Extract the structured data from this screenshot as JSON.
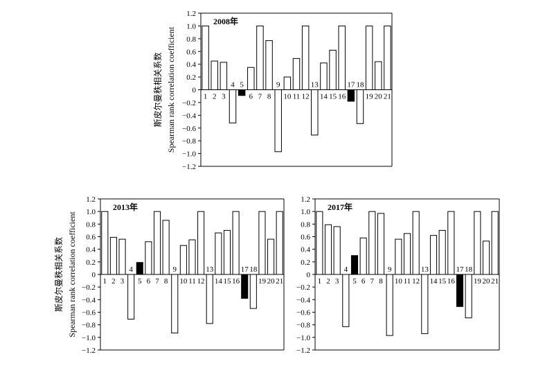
{
  "chart_data": [
    {
      "type": "bar",
      "title": "2008年",
      "ylabel_line1": "斯皮尔曼秩相关系数",
      "ylabel_line2": "Spearman rank correlation coefficient",
      "ylim": [
        -1.2,
        1.2
      ],
      "yticks": [
        1.2,
        1.0,
        0.8,
        0.6,
        0.4,
        0.2,
        0,
        -0.2,
        -0.4,
        -0.6,
        -0.8,
        -1.0,
        -1.2
      ],
      "ytick_labels": [
        "1.2",
        "1.0",
        "0.8",
        "0.6",
        "0.4",
        "0.2",
        "0",
        "−0.2",
        "−0.4",
        "−0.6",
        "−0.8",
        "−1.0",
        "−1.2"
      ],
      "categories": [
        "1",
        "2",
        "3",
        "4",
        "5",
        "6",
        "7",
        "8",
        "9",
        "10",
        "11",
        "12",
        "13",
        "14",
        "15",
        "16",
        "17",
        "18",
        "19",
        "20",
        "21"
      ],
      "values": [
        1.0,
        0.45,
        0.43,
        -0.52,
        -0.09,
        0.35,
        1.0,
        0.77,
        -0.97,
        0.2,
        0.49,
        1.0,
        -0.71,
        0.42,
        0.62,
        1.0,
        -0.18,
        -0.53,
        1.0,
        0.44,
        1.0
      ],
      "highlight": [
        5,
        17
      ],
      "colors": {
        "bar": "#ffffff",
        "highlight": "#000000",
        "stroke": "#000000"
      }
    },
    {
      "type": "bar",
      "title": "2013年",
      "ylabel_line1": "斯皮尔曼秩相关系数",
      "ylabel_line2": "Spearman rank correlation coefficient",
      "ylim": [
        -1.2,
        1.2
      ],
      "yticks": [
        1.2,
        1.0,
        0.8,
        0.6,
        0.4,
        0.2,
        0,
        -0.2,
        -0.4,
        -0.6,
        -0.8,
        -1.0,
        -1.2
      ],
      "ytick_labels": [
        "1.2",
        "1.0",
        "0.8",
        "0.6",
        "0.4",
        "0.2",
        "0",
        "−0.2",
        "−0.4",
        "−0.6",
        "−0.8",
        "−1.0",
        "−1.2"
      ],
      "categories": [
        "1",
        "2",
        "3",
        "4",
        "5",
        "6",
        "7",
        "8",
        "9",
        "10",
        "11",
        "12",
        "13",
        "14",
        "15",
        "16",
        "17",
        "18",
        "19",
        "20",
        "21"
      ],
      "values": [
        1.0,
        0.59,
        0.56,
        -0.71,
        0.19,
        0.52,
        1.0,
        0.86,
        -0.93,
        0.46,
        0.55,
        1.0,
        -0.78,
        0.66,
        0.7,
        1.0,
        -0.38,
        -0.54,
        1.0,
        0.56,
        1.0
      ],
      "highlight": [
        5,
        17
      ],
      "colors": {
        "bar": "#ffffff",
        "highlight": "#000000",
        "stroke": "#000000"
      }
    },
    {
      "type": "bar",
      "title": "2017年",
      "ylim": [
        -1.2,
        1.2
      ],
      "yticks": [
        1.2,
        1.0,
        0.8,
        0.6,
        0.4,
        0.2,
        0,
        -0.2,
        -0.4,
        -0.6,
        -0.8,
        -1.0,
        -1.2
      ],
      "ytick_labels": [
        "1.2",
        "1.0",
        "0.8",
        "0.6",
        "0.4",
        "0.2",
        "0",
        "−0.2",
        "−0.4",
        "−0.6",
        "−0.8",
        "−1.0",
        "−1.2"
      ],
      "categories": [
        "1",
        "2",
        "3",
        "4",
        "5",
        "6",
        "7",
        "8",
        "9",
        "10",
        "11",
        "12",
        "13",
        "14",
        "15",
        "16",
        "17",
        "18",
        "19",
        "20",
        "21"
      ],
      "values": [
        1.0,
        0.79,
        0.76,
        -0.83,
        0.3,
        0.58,
        1.0,
        0.97,
        -0.97,
        0.56,
        0.65,
        1.0,
        -0.94,
        0.62,
        0.7,
        1.0,
        -0.51,
        -0.69,
        1.0,
        0.53,
        1.0
      ],
      "highlight": [
        5,
        17
      ],
      "colors": {
        "bar": "#ffffff",
        "highlight": "#000000",
        "stroke": "#000000"
      }
    }
  ]
}
